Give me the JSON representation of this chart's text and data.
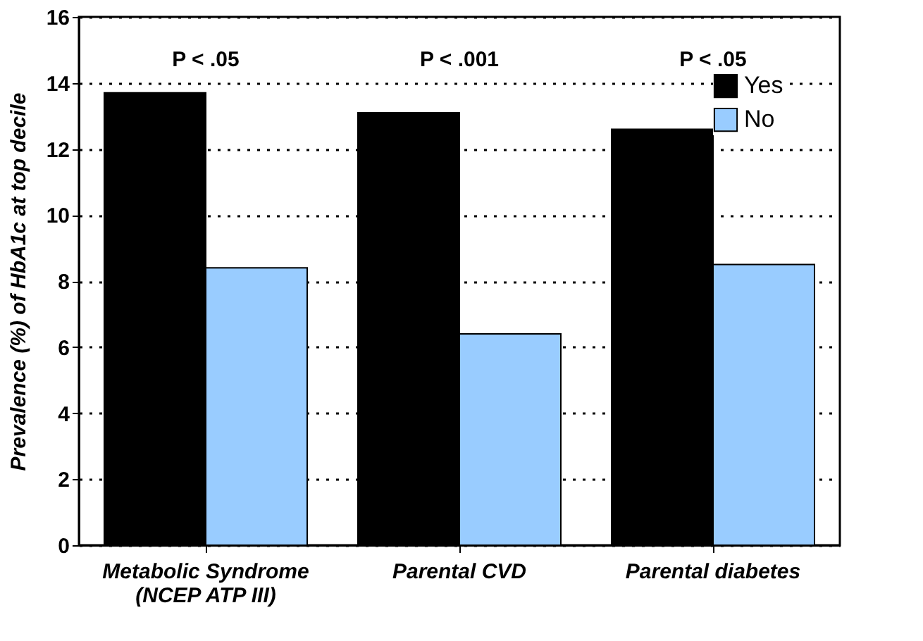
{
  "chart_data": {
    "type": "bar",
    "ylabel": "Prevalence (%) of HbA1c at top decile",
    "categories": [
      "Metabolic Syndrome\n(NCEP ATP III)",
      "Parental CVD",
      "Parental diabetes"
    ],
    "series": [
      {
        "name": "Yes",
        "color": "#000000",
        "values": [
          13.7,
          13.1,
          12.6
        ]
      },
      {
        "name": "No",
        "color": "#99ccff",
        "values": [
          8.4,
          6.4,
          8.5
        ]
      }
    ],
    "annotations": [
      "P < .05",
      "P < .001",
      "P < .05"
    ],
    "ylim": [
      0,
      16
    ],
    "yticks": [
      0,
      2,
      4,
      6,
      8,
      10,
      12,
      14,
      16
    ],
    "grid": "y",
    "legend": "top right"
  }
}
